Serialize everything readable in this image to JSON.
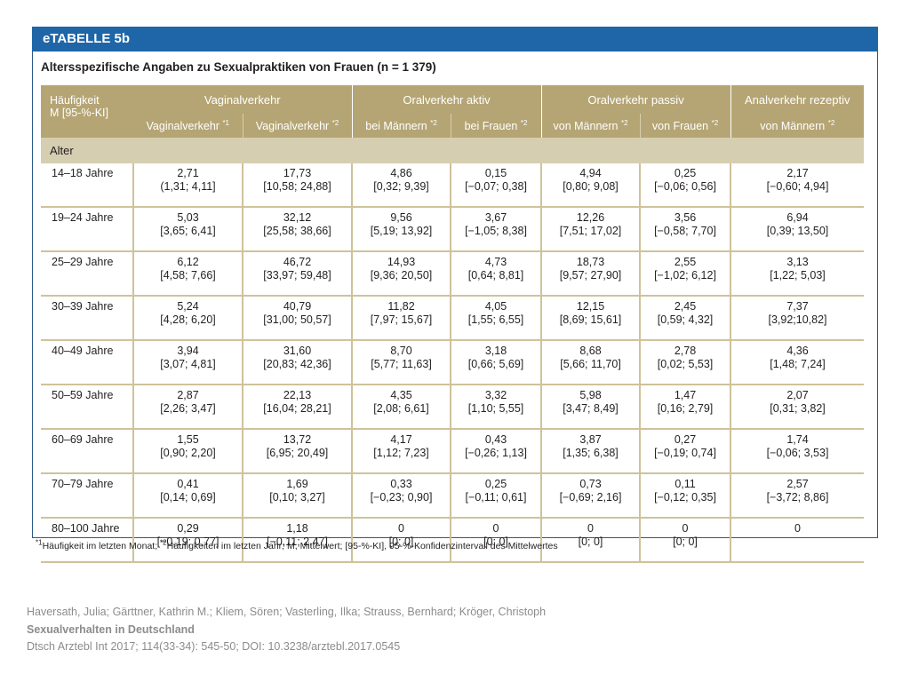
{
  "table_label": "eTABELLE 5b",
  "title": "Altersspezifische Angaben zu Sexualpraktiken von Frauen (n = 1 379)",
  "corner": {
    "line1": "Häufigkeit",
    "line2": "M [95-%-KI]"
  },
  "groups": [
    "Vaginalverkehr",
    "Oralverkehr aktiv",
    "Oralverkehr passiv",
    "Analverkehr rezeptiv"
  ],
  "columns": [
    {
      "label": "Vaginalverkehr ",
      "sup": "*1"
    },
    {
      "label": "Vaginalverkehr ",
      "sup": "*2"
    },
    {
      "label": "bei Männern ",
      "sup": "*2"
    },
    {
      "label": "bei Frauen ",
      "sup": "*2"
    },
    {
      "label": "von Männern ",
      "sup": "*2"
    },
    {
      "label": "von Frauen ",
      "sup": "*2"
    },
    {
      "label": "von Männern ",
      "sup": "*2"
    }
  ],
  "section_label": "Alter",
  "rows": [
    {
      "age": "14–18 Jahre",
      "cells": [
        {
          "mean": "2,71",
          "ci": "(1,31; 4,11]"
        },
        {
          "mean": "17,73",
          "ci": "[10,58; 24,88]"
        },
        {
          "mean": "4,86",
          "ci": "[0,32; 9,39]"
        },
        {
          "mean": "0,15",
          "ci": "[−0,07; 0,38]"
        },
        {
          "mean": "4,94",
          "ci": "[0,80; 9,08]"
        },
        {
          "mean": "0,25",
          "ci": "[−0,06; 0,56]"
        },
        {
          "mean": "2,17",
          "ci": "[−0,60; 4,94]"
        }
      ]
    },
    {
      "age": "19–24 Jahre",
      "cells": [
        {
          "mean": "5,03",
          "ci": "[3,65; 6,41]"
        },
        {
          "mean": "32,12",
          "ci": "[25,58; 38,66]"
        },
        {
          "mean": "9,56",
          "ci": "[5,19; 13,92]"
        },
        {
          "mean": "3,67",
          "ci": "[−1,05; 8,38]"
        },
        {
          "mean": "12,26",
          "ci": "[7,51; 17,02]"
        },
        {
          "mean": "3,56",
          "ci": "[−0,58; 7,70]"
        },
        {
          "mean": "6,94",
          "ci": "[0,39; 13,50]"
        }
      ]
    },
    {
      "age": "25–29 Jahre",
      "cells": [
        {
          "mean": "6,12",
          "ci": "[4,58; 7,66]"
        },
        {
          "mean": "46,72",
          "ci": "[33,97; 59,48]"
        },
        {
          "mean": "14,93",
          "ci": "[9,36; 20,50]"
        },
        {
          "mean": "4,73",
          "ci": "[0,64; 8,81]"
        },
        {
          "mean": "18,73",
          "ci": "[9,57; 27,90]"
        },
        {
          "mean": "2,55",
          "ci": "[−1,02; 6,12]"
        },
        {
          "mean": "3,13",
          "ci": "[1,22; 5,03]"
        }
      ]
    },
    {
      "age": "30–39 Jahre",
      "cells": [
        {
          "mean": "5,24",
          "ci": "[4,28; 6,20]"
        },
        {
          "mean": "40,79",
          "ci": "[31,00; 50,57]"
        },
        {
          "mean": "11,82",
          "ci": "[7,97; 15,67]"
        },
        {
          "mean": "4,05",
          "ci": "[1,55; 6,55]"
        },
        {
          "mean": "12,15",
          "ci": "[8,69; 15,61]"
        },
        {
          "mean": "2,45",
          "ci": "[0,59; 4,32]"
        },
        {
          "mean": "7,37",
          "ci": "[3,92;10,82]"
        }
      ]
    },
    {
      "age": "40–49 Jahre",
      "cells": [
        {
          "mean": "3,94",
          "ci": "[3,07; 4,81]"
        },
        {
          "mean": "31,60",
          "ci": "[20,83; 42,36]"
        },
        {
          "mean": "8,70",
          "ci": "[5,77; 11,63]"
        },
        {
          "mean": "3,18",
          "ci": "[0,66; 5,69]"
        },
        {
          "mean": "8,68",
          "ci": "[5,66; 11,70]"
        },
        {
          "mean": "2,78",
          "ci": "[0,02; 5,53]"
        },
        {
          "mean": "4,36",
          "ci": "[1,48; 7,24]"
        }
      ]
    },
    {
      "age": "50–59 Jahre",
      "cells": [
        {
          "mean": "2,87",
          "ci": "[2,26; 3,47]"
        },
        {
          "mean": "22,13",
          "ci": "[16,04; 28,21]"
        },
        {
          "mean": "4,35",
          "ci": "[2,08; 6,61]"
        },
        {
          "mean": "3,32",
          "ci": "[1,10; 5,55]"
        },
        {
          "mean": "5,98",
          "ci": "[3,47; 8,49]"
        },
        {
          "mean": "1,47",
          "ci": "[0,16; 2,79]"
        },
        {
          "mean": "2,07",
          "ci": "[0,31; 3,82]"
        }
      ]
    },
    {
      "age": "60–69 Jahre",
      "cells": [
        {
          "mean": "1,55",
          "ci": "[0,90; 2,20]"
        },
        {
          "mean": "13,72",
          "ci": "[6,95; 20,49]"
        },
        {
          "mean": "4,17",
          "ci": "[1,12; 7,23]"
        },
        {
          "mean": "0,43",
          "ci": "[−0,26; 1,13]"
        },
        {
          "mean": "3,87",
          "ci": "[1,35; 6,38]"
        },
        {
          "mean": "0,27",
          "ci": "[−0,19; 0,74]"
        },
        {
          "mean": "1,74",
          "ci": "[−0,06; 3,53]"
        }
      ]
    },
    {
      "age": "70–79 Jahre",
      "cells": [
        {
          "mean": "0,41",
          "ci": "[0,14; 0,69]"
        },
        {
          "mean": "1,69",
          "ci": "[0,10; 3,27]"
        },
        {
          "mean": "0,33",
          "ci": "[−0,23; 0,90]"
        },
        {
          "mean": "0,25",
          "ci": "[−0,11; 0,61]"
        },
        {
          "mean": "0,73",
          "ci": "[−0,69; 2,16]"
        },
        {
          "mean": "0,11",
          "ci": "[−0,12; 0,35]"
        },
        {
          "mean": "2,57",
          "ci": "[−3,72; 8,86]"
        }
      ]
    },
    {
      "age": "80–100 Jahre",
      "cells": [
        {
          "mean": "0,29",
          "ci": "[−0,19; 0,77]"
        },
        {
          "mean": "1,18",
          "ci": "[−0,11; 2,47]"
        },
        {
          "mean": "0",
          "ci": "[0; 0]"
        },
        {
          "mean": "0",
          "ci": "[0; 0]"
        },
        {
          "mean": "0",
          "ci": "[0; 0]"
        },
        {
          "mean": "0",
          "ci": "[0; 0]"
        },
        {
          "mean": "0",
          "ci": ""
        }
      ]
    }
  ],
  "footnote": {
    "sup1": "*1",
    "text1": "Häufigkeit im letzten Monat; ",
    "sup2": "*2",
    "text2": "Häufigkeiten im letzten Jahr; M, Mittelwert; [95-%-KI], 95-%-Konfidenzintervall des Mittelwertes"
  },
  "citation": {
    "authors": "Haversath, Julia; Gärttner, Kathrin M.; Kliem, Sören; Vasterling, Ilka; Strauss, Bernhard; Kröger, Christoph",
    "article_title": "Sexualverhalten in Deutschland",
    "source": "Dtsch Arztebl Int 2017; 114(33-34): 545-50; DOI: 10.3238/arztebl.2017.0545"
  },
  "colors": {
    "header_blue": "#1f66a8",
    "header_tan": "#b5a574",
    "section_tan": "#d6ceb0",
    "rule": "#cfc29a"
  }
}
